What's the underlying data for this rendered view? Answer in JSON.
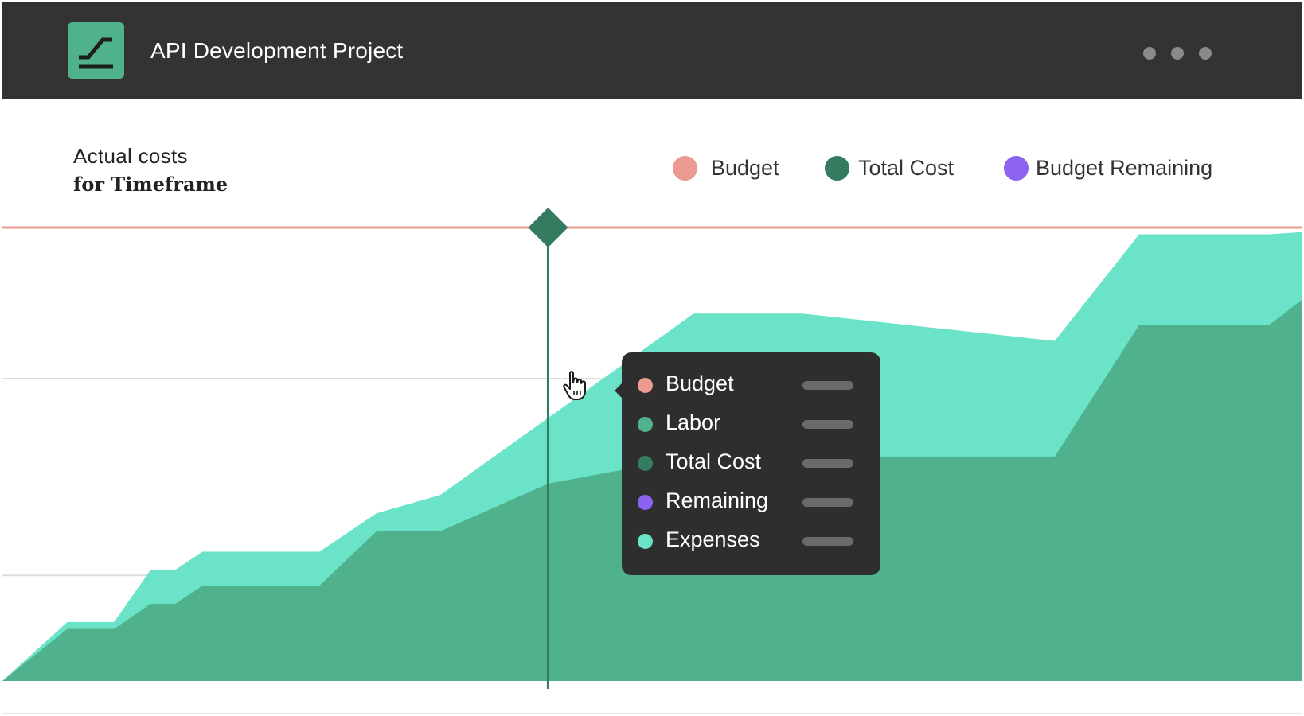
{
  "header": {
    "title": "API Development Project",
    "logo_icon": "trend-chart-icon",
    "menu_icon": "more-horizontal-icon"
  },
  "chart_header": {
    "line1": "Actual costs",
    "line2": "for Timeframe"
  },
  "legend": [
    {
      "label": "Budget",
      "color": "#ea9a8e"
    },
    {
      "label": "Total Cost",
      "color": "#357b60"
    },
    {
      "label": "Budget Remaining",
      "color": "#8b63f0"
    }
  ],
  "tooltip": {
    "items": [
      {
        "label": "Budget",
        "color": "#ea9a8e"
      },
      {
        "label": "Labor",
        "color": "#4fb28c"
      },
      {
        "label": "Total Cost",
        "color": "#357b60"
      },
      {
        "label": "Remaining",
        "color": "#8b63f0"
      },
      {
        "label": "Expenses",
        "color": "#6ae3c8"
      }
    ]
  },
  "cursor_icon": "pointer-hand-icon",
  "chart_data": {
    "type": "area",
    "stacked": true,
    "xlim": [
      0,
      100
    ],
    "ylim": [
      0,
      100
    ],
    "grid": true,
    "legend_placement": "top-right",
    "budget": 100,
    "hover_x": 42,
    "x": [
      0,
      5,
      8.6,
      11.4,
      13.3,
      15.4,
      24.4,
      28.8,
      33.7,
      42,
      53.2,
      61.6,
      81,
      87.5,
      97.5,
      100
    ],
    "series": [
      {
        "name": "Labor",
        "color": "#4fb28c",
        "values": [
          0,
          11.5,
          11.5,
          17,
          17,
          21,
          21,
          33,
          33,
          43.5,
          49.5,
          49.5,
          49.5,
          78.5,
          78.5,
          84
        ]
      },
      {
        "name": "Expenses",
        "color": "#6ae3c8",
        "values": [
          0,
          1.5,
          1.5,
          7.5,
          7.5,
          7.5,
          7.5,
          4,
          8,
          14.5,
          31.5,
          31.5,
          25.5,
          20,
          20,
          15
        ]
      }
    ]
  }
}
